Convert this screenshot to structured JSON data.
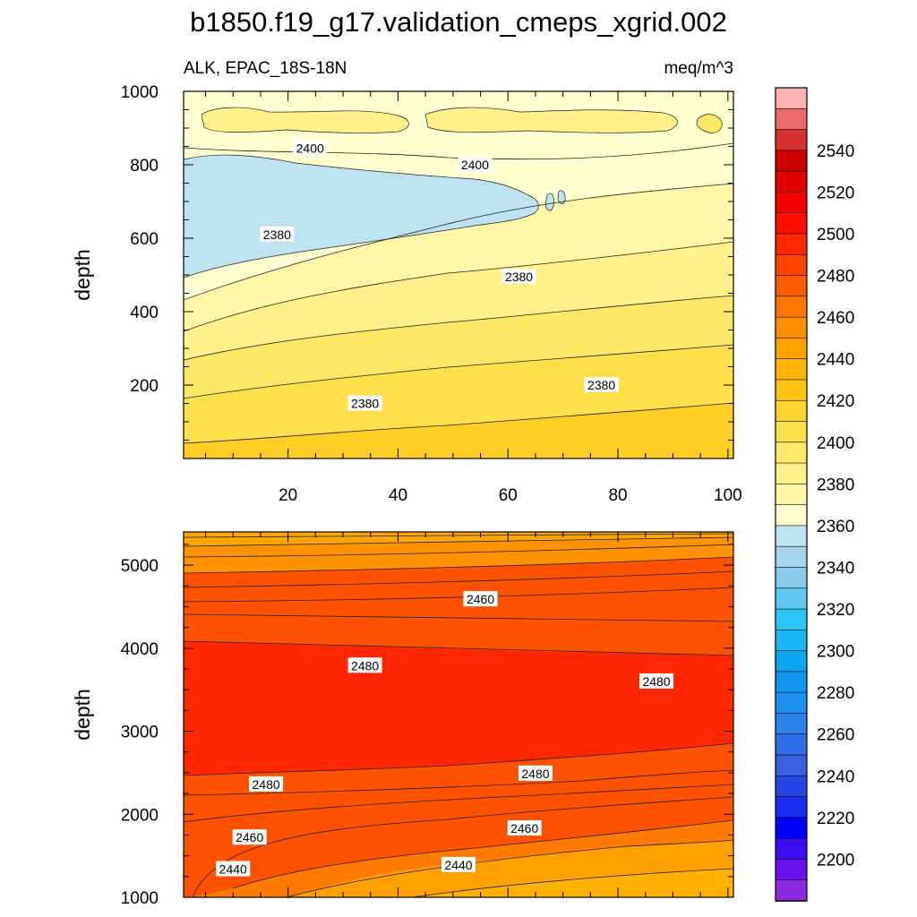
{
  "chart_data": {
    "type": "heatmap",
    "title": "b1850.f19_g17.validation_cmeps_xgrid.002",
    "variable": "ALK, EPAC_18S-18N",
    "units": "meq/m^3",
    "panels": [
      {
        "name": "upper",
        "ylabel": "depth",
        "xlim": [
          1,
          101
        ],
        "ylim": [
          1000,
          0
        ],
        "x_ticks": [
          "20",
          "40",
          "60",
          "80",
          "100"
        ],
        "y_ticks": [
          "200",
          "400",
          "600",
          "800",
          "1000"
        ],
        "contour_labels": [
          {
            "text": "2380",
            "x": 34,
            "y": 150
          },
          {
            "text": "2380",
            "x": 77,
            "y": 200
          },
          {
            "text": "2380",
            "x": 62,
            "y": 495
          },
          {
            "text": "2380",
            "x": 18,
            "y": 610
          },
          {
            "text": "2400",
            "x": 24,
            "y": 845
          },
          {
            "text": "2400",
            "x": 54,
            "y": 800
          }
        ]
      },
      {
        "name": "lower",
        "ylabel": "depth",
        "xlim": [
          1,
          101
        ],
        "ylim": [
          5400,
          1000
        ],
        "x_ticks": [],
        "y_ticks": [
          "1000",
          "2000",
          "3000",
          "4000",
          "5000"
        ],
        "contour_labels": [
          {
            "text": "2440",
            "x": 10,
            "y": 1340
          },
          {
            "text": "2440",
            "x": 51,
            "y": 1390
          },
          {
            "text": "2460",
            "x": 13,
            "y": 1720
          },
          {
            "text": "2460",
            "x": 63,
            "y": 1830
          },
          {
            "text": "2480",
            "x": 16,
            "y": 2360
          },
          {
            "text": "2480",
            "x": 65,
            "y": 2490
          },
          {
            "text": "2480",
            "x": 34,
            "y": 3790
          },
          {
            "text": "2480",
            "x": 87,
            "y": 3600
          },
          {
            "text": "2460",
            "x": 55,
            "y": 4590
          }
        ]
      }
    ],
    "colorbar": {
      "levels": [
        2190,
        2200,
        2210,
        2220,
        2230,
        2240,
        2250,
        2260,
        2270,
        2280,
        2290,
        2300,
        2310,
        2320,
        2330,
        2340,
        2350,
        2360,
        2370,
        2380,
        2390,
        2400,
        2410,
        2420,
        2430,
        2440,
        2450,
        2460,
        2470,
        2480,
        2490,
        2500,
        2510,
        2520,
        2530,
        2540,
        2550,
        2560
      ],
      "labels": [
        "2200",
        "2220",
        "2240",
        "2260",
        "2280",
        "2300",
        "2320",
        "2340",
        "2360",
        "2380",
        "2400",
        "2420",
        "2440",
        "2460",
        "2480",
        "2500",
        "2520",
        "2540"
      ],
      "colors": [
        "#8c2be2",
        "#6a11ee",
        "#3b0ff2",
        "#0000ff",
        "#1a2cf0",
        "#2746e6",
        "#3a5fe0",
        "#2f6ee8",
        "#2b82ea",
        "#1e8ff0",
        "#1197f2",
        "#0aa6f0",
        "#1bb7f5",
        "#2bc6f7",
        "#5fc9f1",
        "#8ccbeb",
        "#a6d4ee",
        "#bde3f1",
        "#ffffd0",
        "#fff6a8",
        "#fff08a",
        "#ffe86a",
        "#ffe04a",
        "#ffd42e",
        "#ffc412",
        "#ffb405",
        "#ffa200",
        "#ff8d00",
        "#ff7600",
        "#ff5c00",
        "#ff4200",
        "#ff2800",
        "#ff0e00",
        "#f40000",
        "#e00000",
        "#cc0000",
        "#d83030",
        "#e86a6a",
        "#ffb3b3"
      ]
    }
  }
}
